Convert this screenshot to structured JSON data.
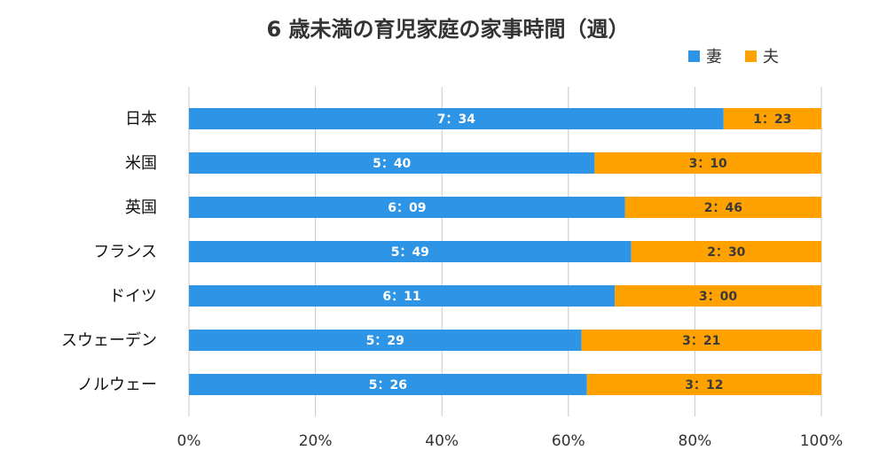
{
  "chart_data": {
    "type": "bar",
    "orientation": "horizontal",
    "stacked": "percent",
    "title": "6 歳未満の育児家庭の家事時間（週）",
    "categories": [
      "日本",
      "米国",
      "英国",
      "フランス",
      "ドイツ",
      "スウェーデン",
      "ノルウェー"
    ],
    "series": [
      {
        "name": "妻",
        "color": "#2e95e6",
        "values_minutes": [
          454,
          340,
          369,
          349,
          371,
          329,
          326
        ],
        "labels": [
          "7：34",
          "5：40",
          "6：09",
          "5：49",
          "6：11",
          "5：29",
          "5：26"
        ]
      },
      {
        "name": "夫",
        "color": "#ffa200",
        "values_minutes": [
          83,
          190,
          166,
          150,
          180,
          201,
          192
        ],
        "labels": [
          "1：23",
          "3：10",
          "2：46",
          "2：30",
          "3：00",
          "3：21",
          "3：12"
        ]
      }
    ],
    "xlim": [
      0,
      100
    ],
    "xticks": [
      "0%",
      "20%",
      "40%",
      "60%",
      "80%",
      "100%"
    ],
    "grid": true,
    "legend": "top-right"
  }
}
